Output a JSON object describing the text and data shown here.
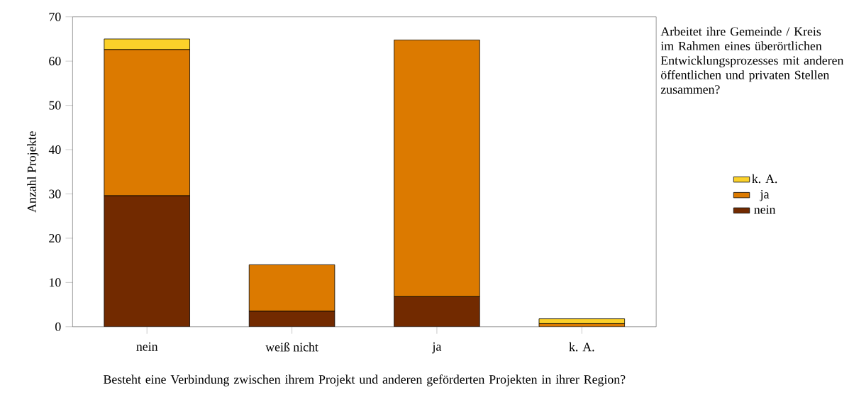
{
  "chart_data": {
    "type": "bar",
    "stacked": true,
    "categories": [
      "nein",
      "weiß nicht",
      "ja",
      "k. A."
    ],
    "series": [
      {
        "name": "nein",
        "color": "#722a00",
        "values": [
          29.6,
          3.5,
          6.8,
          null
        ]
      },
      {
        "name": "ja",
        "color": "#dc7a00",
        "values": [
          33,
          10.5,
          58,
          0.7
        ]
      },
      {
        "name": "k. A.",
        "color": "#fbd12a",
        "values": [
          2.4,
          null,
          null,
          1.1
        ]
      }
    ],
    "xlabel": "Besteht eine Verbindung zwischen ihrem Projekt und anderen geförderten Projekten in ihrer Region?",
    "ylabel": "Anzahl Projekte",
    "legend_title": "Arbeitet ihre Gemeinde / Kreis im Rahmen eines überörtlichen Entwicklungsprozesses mit anderen öffentlichen und privaten Stellen zusammen?",
    "legend": "right",
    "ylim": [
      0,
      70
    ],
    "yticks": [
      0,
      10,
      20,
      30,
      40,
      50,
      60,
      70
    ]
  }
}
